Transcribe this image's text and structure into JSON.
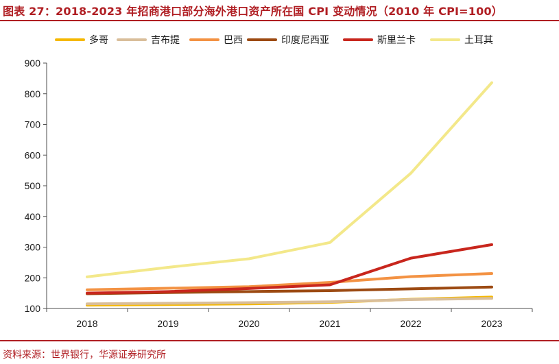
{
  "header": {
    "title": "图表 27：2018-2023 年招商港口部分海外港口资产所在国 CPI 变动情况（2010 年 CPI=100）"
  },
  "footer": {
    "source": "资料来源：世界银行，华源证券研究所"
  },
  "colors": {
    "accent": "#b01e23",
    "axis": "#4d4d4d"
  },
  "chart_data": {
    "type": "line",
    "title": "",
    "xlabel": "",
    "ylabel": "",
    "x": [
      "2018",
      "2019",
      "2020",
      "2021",
      "2022",
      "2023"
    ],
    "ylim": [
      100,
      900
    ],
    "yticks": [
      100,
      200,
      300,
      400,
      500,
      600,
      700,
      800,
      900
    ],
    "grid": false,
    "legend_position": "top",
    "series": [
      {
        "name": "多哥",
        "color": "#f5b800",
        "values": [
          111,
          113,
          115,
          120,
          130,
          137
        ]
      },
      {
        "name": "吉布提",
        "color": "#d9be9a",
        "values": [
          115,
          117,
          119,
          122,
          129,
          133
        ]
      },
      {
        "name": "巴西",
        "color": "#f39243",
        "values": [
          161,
          166,
          171,
          185,
          204,
          214
        ]
      },
      {
        "name": "印度尼西亚",
        "color": "#9c4a12",
        "values": [
          148,
          152,
          155,
          158,
          164,
          170
        ]
      },
      {
        "name": "斯里兰卡",
        "color": "#c8261d",
        "values": [
          150,
          155,
          165,
          177,
          264,
          308
        ]
      },
      {
        "name": "土耳其",
        "color": "#f3e88a",
        "values": [
          203,
          234,
          262,
          315,
          541,
          836
        ]
      }
    ]
  }
}
